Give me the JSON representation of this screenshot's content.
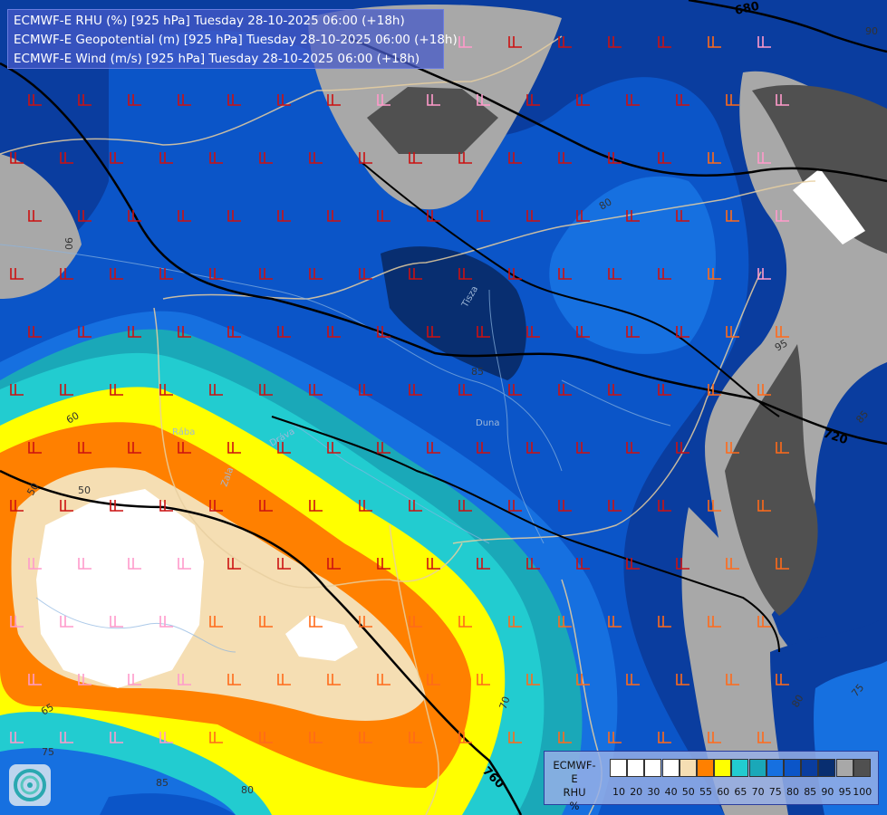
{
  "header": {
    "line1": "ECMWF-E RHU (%) [925 hPa] Tuesday 28-10-2025 06:00 (+18h)",
    "line2": "ECMWF-E Geopotential (m) [925 hPa] Tuesday 28-10-2025 06:00 (+18h)",
    "line3": "ECMWF-E Wind (m/s) [925 hPa] Tuesday 28-10-2025 06:00 (+18h)"
  },
  "legend": {
    "title_line1": "ECMWF-E",
    "title_line2": "RHU",
    "unit": "%",
    "ticks": [
      "10",
      "20",
      "30",
      "40",
      "50",
      "55",
      "60",
      "65",
      "70",
      "75",
      "80",
      "85",
      "90",
      "95",
      "100"
    ],
    "colors": [
      "#ffffff",
      "#ffffff",
      "#ffffff",
      "#ffffff",
      "#f5deb3",
      "#ff8000",
      "#ffff00",
      "#22ccd0",
      "#1aa8b8",
      "#1670e0",
      "#0b55c8",
      "#0a3d9f",
      "#082e70",
      "#a8a8a8",
      "#505050"
    ]
  },
  "contour_labels": {
    "geopotential": [
      "680",
      "720",
      "760"
    ],
    "rhu": [
      "90",
      "80",
      "85",
      "95",
      "60",
      "50",
      "65",
      "70",
      "75",
      "85",
      "80",
      "90",
      "85",
      "75",
      "80",
      "85"
    ]
  },
  "place_labels": [
    "Zala",
    "Rába",
    "Duna",
    "Tisza",
    "Dráva"
  ],
  "logo": "ecmwf-logo"
}
